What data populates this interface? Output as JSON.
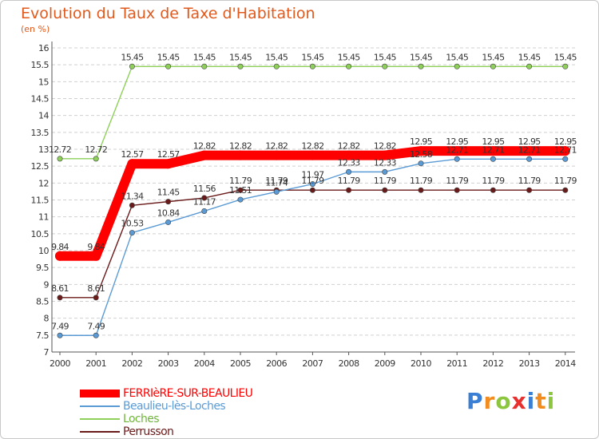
{
  "header": {
    "title": "Evolution du Taux de Taxe d'Habitation",
    "subtitle": "(en %)"
  },
  "chart_data": {
    "type": "line",
    "title": "Evolution du Taux de Taxe d'Habitation",
    "ylabel": "(en %)",
    "xlabel": "",
    "x": [
      "2000",
      "2001",
      "2002",
      "2003",
      "2004",
      "2005",
      "2006",
      "2007",
      "2008",
      "2009",
      "2010",
      "2011",
      "2012",
      "2013",
      "2014"
    ],
    "ylim": [
      7,
      16
    ],
    "yticks": [
      "7",
      "7.5",
      "8",
      "8.5",
      "9",
      "9.5",
      "10",
      "10.5",
      "11",
      "11.5",
      "12",
      "12.5",
      "13",
      "13.5",
      "14",
      "14.5",
      "15",
      "15.5",
      "16"
    ],
    "grid": "horizontal",
    "legend_position": "bottom-left",
    "series": [
      {
        "name": "FERRIèRE-SUR-BEAULIEU",
        "color": "#ff0000",
        "values": [
          9.84,
          9.84,
          12.57,
          12.57,
          12.82,
          12.82,
          12.82,
          12.82,
          12.82,
          12.82,
          12.95,
          12.95,
          12.95,
          12.95,
          12.95
        ],
        "labels": [
          "9.84",
          "9.84",
          "12.57",
          "12.57",
          "12.82",
          "12.82",
          "12.82",
          "12.82",
          "12.82",
          "12.82",
          "12.95",
          "12.95",
          "12.95",
          "12.95",
          "12.95"
        ]
      },
      {
        "name": "Beaulieu-lès-Loches",
        "color": "#5b9bd5",
        "values": [
          7.49,
          7.49,
          10.53,
          10.84,
          11.17,
          11.51,
          11.74,
          11.97,
          12.33,
          12.33,
          12.58,
          12.71,
          12.71,
          12.71,
          12.71
        ],
        "labels": [
          "7.49",
          "7.49",
          "10.53",
          "10.84",
          "11.17",
          "11.51",
          "11.74",
          "11.97",
          "12.33",
          "12.33",
          "12.58",
          "12.71",
          "12.71",
          "12.71",
          "12.71"
        ]
      },
      {
        "name": "Loches",
        "color": "#8ed05a",
        "values": [
          12.72,
          12.72,
          15.45,
          15.45,
          15.45,
          15.45,
          15.45,
          15.45,
          15.45,
          15.45,
          15.45,
          15.45,
          15.45,
          15.45,
          15.45
        ],
        "labels": [
          "12.72",
          "12.72",
          "15.45",
          "15.45",
          "15.45",
          "15.45",
          "15.45",
          "15.45",
          "15.45",
          "15.45",
          "15.45",
          "15.45",
          "15.45",
          "15.45",
          "15.45"
        ]
      },
      {
        "name": "Perrusson",
        "color": "#6b1a1a",
        "values": [
          8.61,
          8.61,
          11.34,
          11.45,
          11.56,
          11.79,
          11.79,
          11.79,
          11.79,
          11.79,
          11.79,
          11.79,
          11.79,
          11.79,
          11.79
        ],
        "labels": [
          "8.61",
          "8.61",
          "11.34",
          "11.45",
          "11.56",
          "11.79",
          "11.79",
          "11.79",
          "11.79",
          "11.79",
          "11.79",
          "11.79",
          "11.79",
          "11.79",
          "11.79"
        ]
      }
    ]
  },
  "logo": {
    "letters": [
      "P",
      "r",
      "o",
      "x",
      "i",
      "t",
      "i"
    ],
    "colors": [
      "#3a7fd4",
      "#f28c1e",
      "#8cc63f",
      "#e8312f",
      "#3a7fd4",
      "#f28c1e",
      "#8cc63f"
    ]
  }
}
